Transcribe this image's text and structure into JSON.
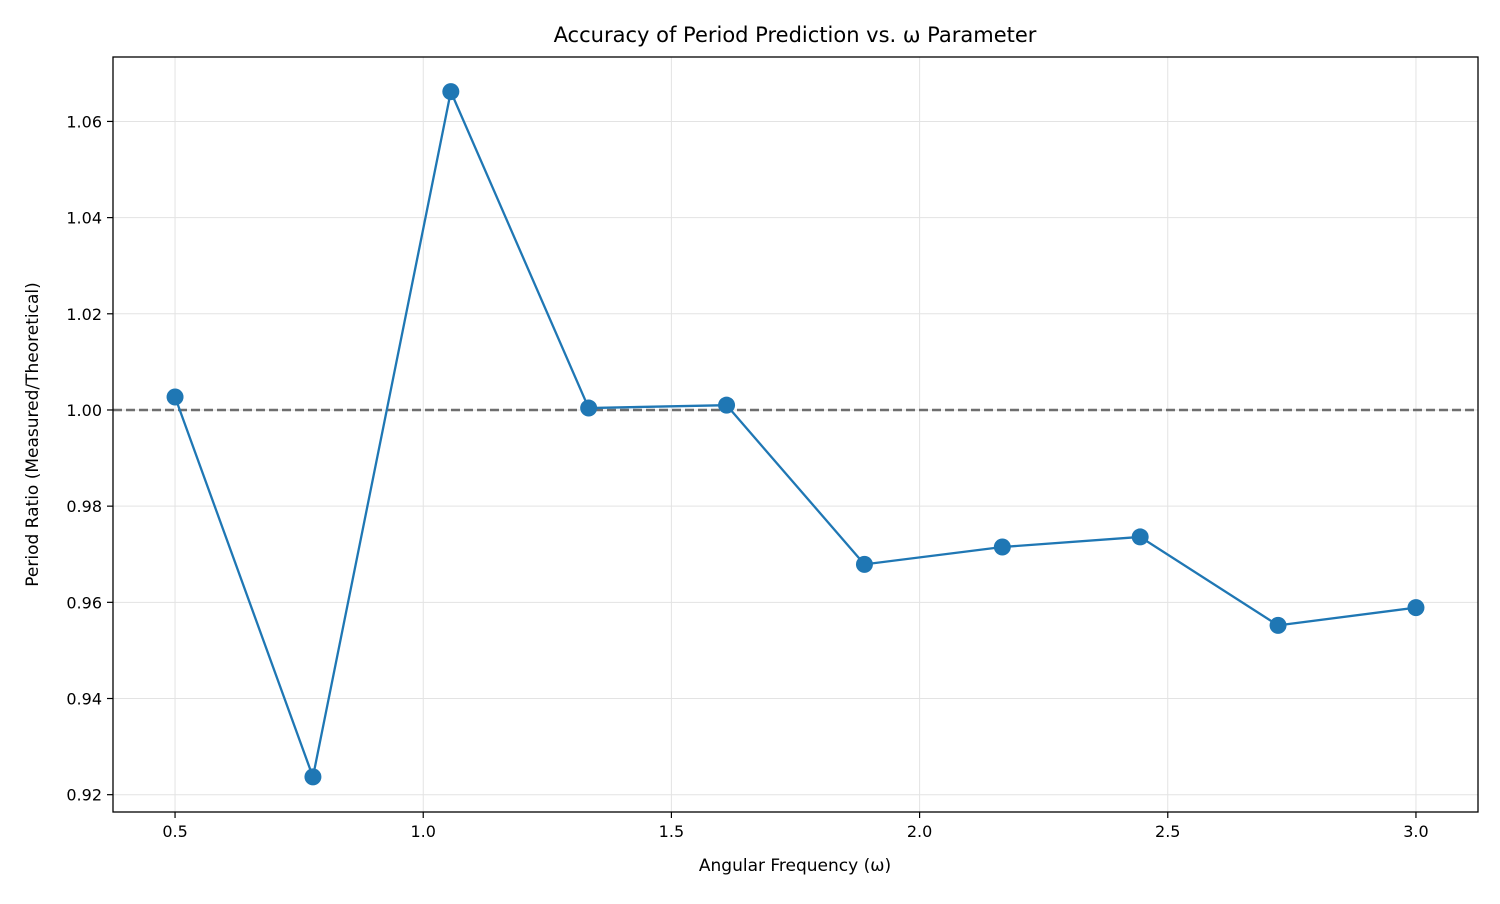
{
  "chart_data": {
    "type": "line",
    "title": "Accuracy of Period Prediction vs. ω Parameter",
    "xlabel": "Angular Frequency (ω)",
    "ylabel": "Period Ratio (Measured/Theoretical)",
    "xlim": [
      0.375,
      3.125
    ],
    "ylim": [
      0.9164,
      1.0734
    ],
    "x_ticks": [
      0.5,
      1.0,
      1.5,
      2.0,
      2.5,
      3.0
    ],
    "x_tick_labels": [
      "0.5",
      "1.0",
      "1.5",
      "2.0",
      "2.5",
      "3.0"
    ],
    "y_ticks": [
      0.92,
      0.94,
      0.96,
      0.98,
      1.0,
      1.02,
      1.04,
      1.06
    ],
    "y_tick_labels": [
      "0.92",
      "0.94",
      "0.96",
      "0.98",
      "1.00",
      "1.02",
      "1.04",
      "1.06"
    ],
    "grid": true,
    "reference_line": {
      "y": 1.0,
      "style": "dashed",
      "color": "#6e6e6e"
    },
    "series": [
      {
        "color": "#1f77b4",
        "marker": "circle",
        "x": [
          0.5,
          0.7778,
          1.0556,
          1.3333,
          1.6111,
          1.8889,
          2.1667,
          2.4444,
          2.7222,
          3.0
        ],
        "y": [
          1.0027,
          0.9237,
          1.0662,
          1.0004,
          1.001,
          0.9679,
          0.9715,
          0.9736,
          0.9552,
          0.9589
        ]
      }
    ]
  }
}
